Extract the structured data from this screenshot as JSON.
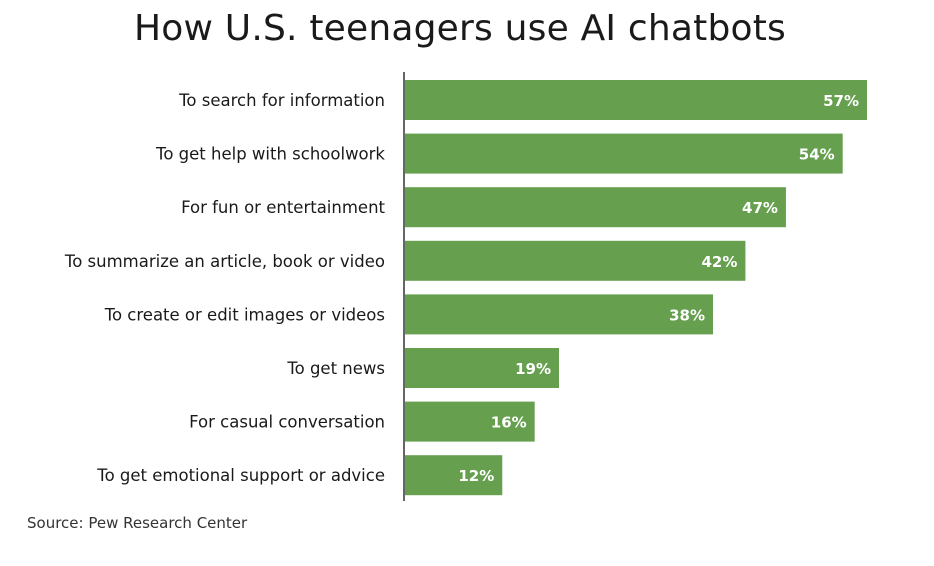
{
  "chart_data": {
    "type": "bar",
    "orientation": "horizontal",
    "title": "How U.S. teenagers use AI chatbots",
    "categories": [
      "To search for information",
      "To get help with schoolwork",
      "For fun or entertainment",
      "To summarize an article, book or video",
      "To create or edit images or videos",
      "To get news",
      "For casual conversation",
      "To get emotional support or advice"
    ],
    "values": [
      57,
      54,
      47,
      42,
      38,
      19,
      16,
      12
    ],
    "value_labels": [
      "57%",
      "54%",
      "47%",
      "42%",
      "38%",
      "19%",
      "16%",
      "12%"
    ],
    "unit": "%",
    "xlim": [
      0,
      57
    ],
    "grid": false,
    "legend": "none",
    "bar_color": "#66a04f",
    "label_color": "#ffffff",
    "source": "Source: Pew Research Center"
  }
}
